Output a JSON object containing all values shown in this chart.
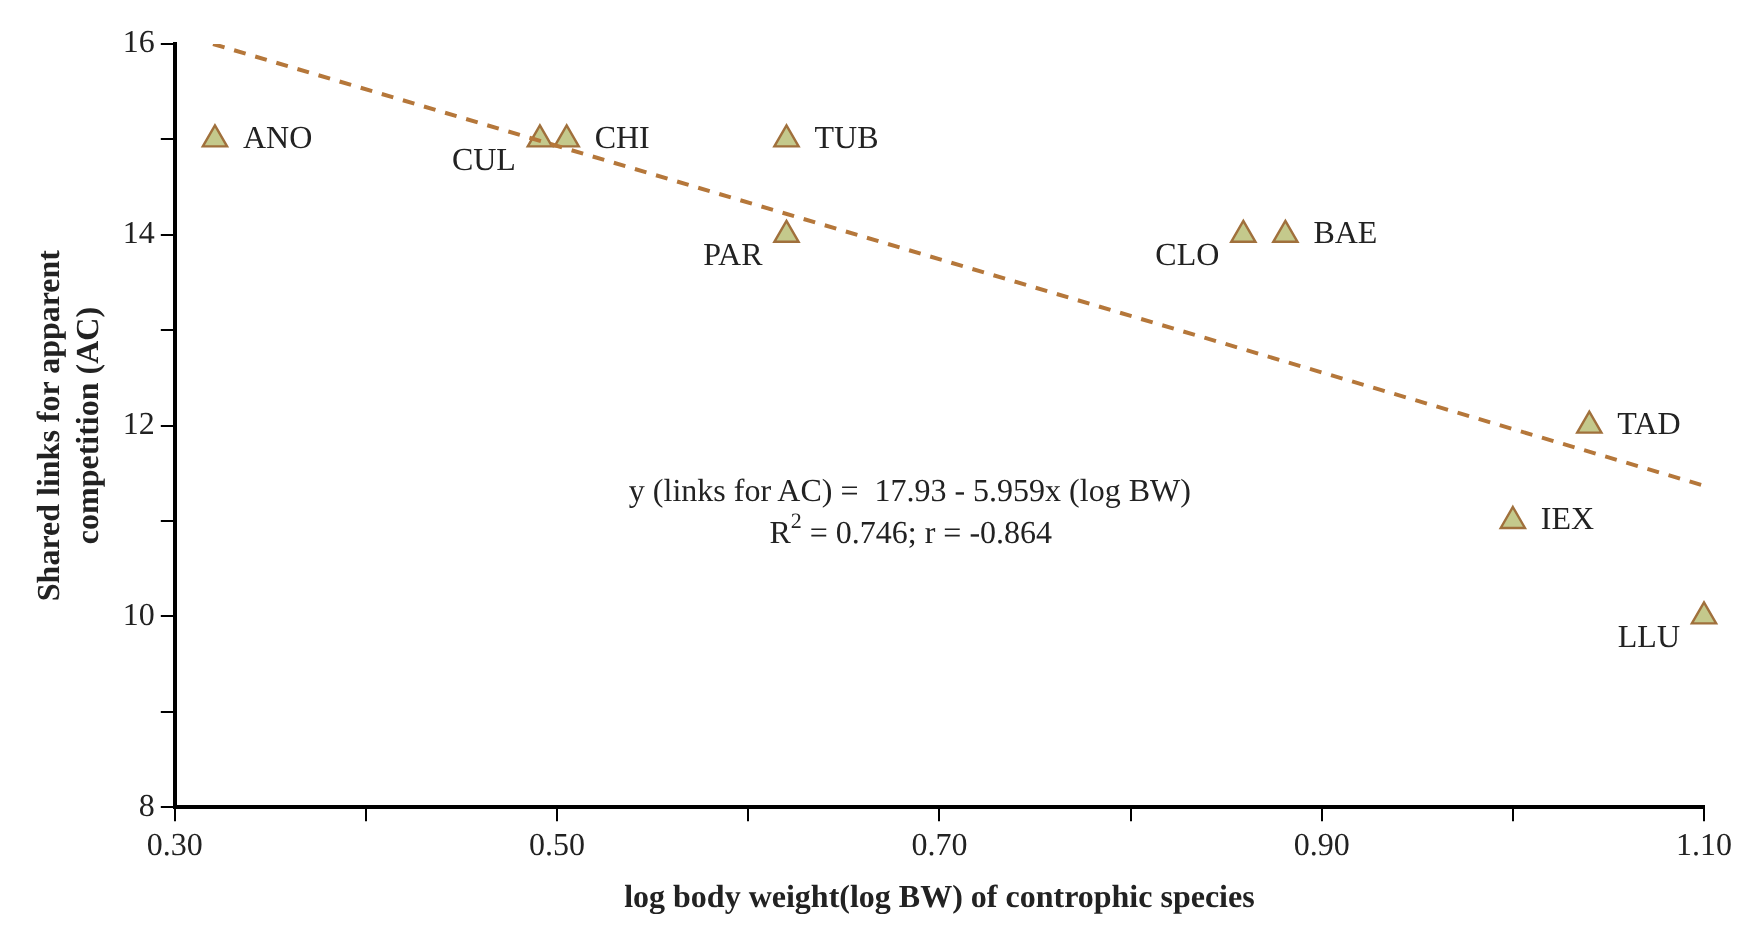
{
  "chart_data": {
    "type": "scatter",
    "xlabel": "log body weight(log BW) of controphic species",
    "ylabel": "Shared links for apparent competition (AC)",
    "xlim": [
      0.3,
      1.1
    ],
    "xticks": [
      {
        "value": 0.3,
        "label": "0.30"
      },
      {
        "value": 0.4,
        "label": null
      },
      {
        "value": 0.5,
        "label": "0.50"
      },
      {
        "value": 0.6,
        "label": null
      },
      {
        "value": 0.7,
        "label": "0.70"
      },
      {
        "value": 0.8,
        "label": null
      },
      {
        "value": 0.9,
        "label": "0.90"
      },
      {
        "value": 1.0,
        "label": null
      },
      {
        "value": 1.1,
        "label": "1.10"
      }
    ],
    "ylim": [
      8,
      16
    ],
    "yticks": [
      8,
      {
        "value": 9,
        "label": null
      },
      10,
      {
        "value": 11,
        "label": null
      },
      12,
      {
        "value": 13,
        "label": null
      },
      14,
      {
        "value": 15,
        "label": null
      },
      16
    ],
    "grid": false,
    "legend": false,
    "marker": "triangle",
    "series": [
      {
        "type": "scatter",
        "color": "#c4c98c",
        "x": [
          0.321,
          0.491,
          0.505,
          0.62,
          0.62,
          0.859,
          0.881,
          1.04,
          1.0,
          1.1
        ],
        "values": [
          15,
          15,
          15,
          15,
          14,
          14,
          14,
          12,
          11,
          10
        ]
      },
      {
        "type": "line",
        "color": "#b5773a",
        "line_style": "dashed",
        "marker": "none",
        "x": [
          0.32,
          1.1
        ],
        "values": [
          16.0,
          11.37
        ]
      }
    ],
    "annotations": [
      {
        "text": "ANO",
        "x": 0.321,
        "y": 15
      },
      {
        "text": "CUL",
        "x": 0.491,
        "y": 15
      },
      {
        "text": "CHI",
        "x": 0.505,
        "y": 15
      },
      {
        "text": "TUB",
        "x": 0.62,
        "y": 15
      },
      {
        "text": "PAR",
        "x": 0.62,
        "y": 14
      },
      {
        "text": "CLO",
        "x": 0.859,
        "y": 14
      },
      {
        "text": "BAE",
        "x": 0.881,
        "y": 14
      },
      {
        "text": "TAD",
        "x": 1.04,
        "y": 12
      },
      {
        "text": "IEX",
        "x": 1.0,
        "y": 11
      },
      {
        "text": "LLU",
        "x": 1.1,
        "y": 10
      },
      "y (links for AC) =  17.93 - 5.959x (log BW)",
      "R$^{2}$ = 0.746; r = -0.864"
    ]
  }
}
